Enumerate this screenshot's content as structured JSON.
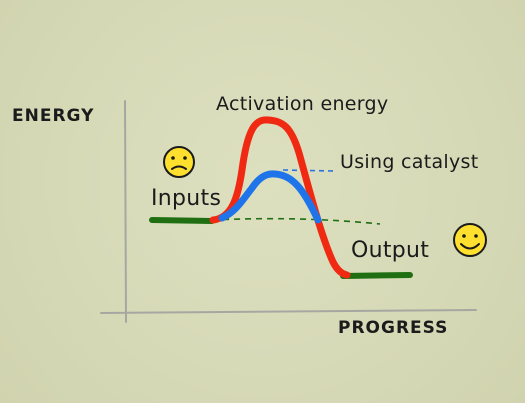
{
  "labels": {
    "y_axis": "ENERGY",
    "x_axis": "PROGRESS",
    "activation": "Activation energy",
    "catalyst": "Using catalyst",
    "inputs": "Inputs",
    "output": "Output"
  },
  "icons": {
    "inputs_face": "worried-face-icon",
    "output_face": "smiley-face-icon"
  },
  "colors": {
    "uncatalyzed_curve": "#f02a12",
    "catalyzed_curve": "#1f74ea",
    "energy_level_bars": "#1f6f12",
    "catalyst_guide": "#2a72e0",
    "face_fill": "#ffe02e"
  }
}
